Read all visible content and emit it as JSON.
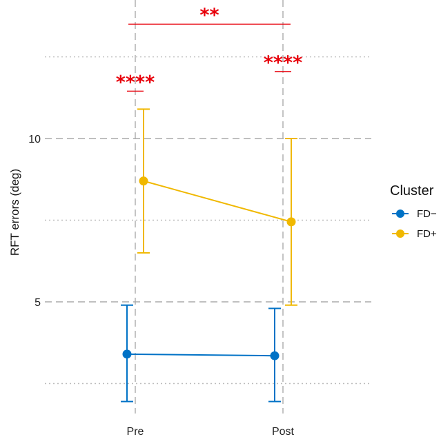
{
  "chart_data": {
    "type": "line",
    "ylabel": "RFT errors (deg)",
    "categories": [
      "Pre",
      "Post"
    ],
    "y_ticks": [
      5,
      10
    ],
    "ylim": [
      0.5,
      13.5
    ],
    "grid": true,
    "legend": {
      "title": "Cluster",
      "placement": "right"
    },
    "series": [
      {
        "name": "FD−",
        "color": "#0072C6",
        "mean": [
          3.4,
          3.35
        ],
        "lower": [
          1.95,
          1.95
        ],
        "upper": [
          4.9,
          4.8
        ]
      },
      {
        "name": "FD+",
        "color": "#F0B800",
        "mean": [
          8.7,
          7.45
        ],
        "lower": [
          6.5,
          4.9
        ],
        "upper": [
          10.9,
          10.0
        ]
      }
    ],
    "annotations": [
      {
        "text": "****",
        "x": "Pre",
        "y": 11.45,
        "color": "#E8000B"
      },
      {
        "text": "****",
        "x": "Post",
        "y": 12.05,
        "color": "#E8000B"
      },
      {
        "text": "**",
        "from": "Pre",
        "to": "Post",
        "y": 13.5,
        "color": "#E8000B"
      }
    ]
  }
}
